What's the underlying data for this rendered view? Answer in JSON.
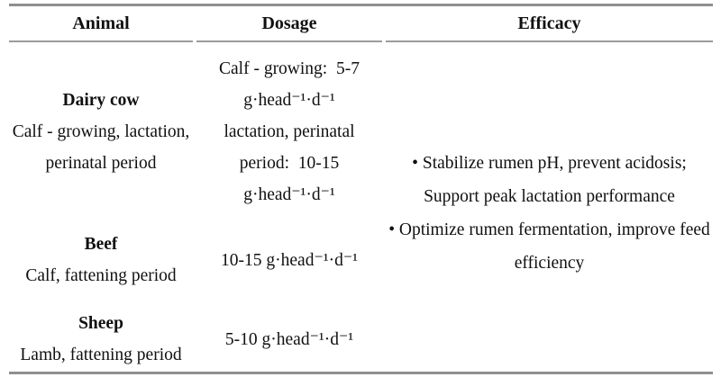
{
  "page": {
    "background_color": "#ffffff",
    "text_color": "#101010",
    "rule_color": "#8f8f8f",
    "header_rule_color": "#9b9b9b"
  },
  "table": {
    "headers": {
      "animal": "Animal",
      "dosage": "Dosage",
      "efficacy": "Efficacy"
    },
    "rows": [
      {
        "animal_title": "Dairy cow",
        "animal_lines": [
          "Calf - growing, lactation,",
          "perinatal period"
        ],
        "dosage_lines": [
          "Calf - growing:  5-7",
          "g·head⁻¹·d⁻¹",
          "lactation, perinatal",
          "period:  10-15",
          "g·head⁻¹·d⁻¹"
        ]
      },
      {
        "animal_title": "Beef",
        "animal_lines": [
          "Calf, fattening period"
        ],
        "dosage_lines": [
          "10-15 g·head⁻¹·d⁻¹"
        ]
      },
      {
        "animal_title": "Sheep",
        "animal_lines": [
          "Lamb, fattening period"
        ],
        "dosage_lines": [
          "5-10 g·head⁻¹·d⁻¹"
        ]
      }
    ],
    "efficacy_lines": [
      "• Stabilize rumen pH, prevent acidosis;",
      "Support peak lactation performance",
      "• Optimize rumen fermentation, improve feed",
      "efficiency"
    ]
  }
}
